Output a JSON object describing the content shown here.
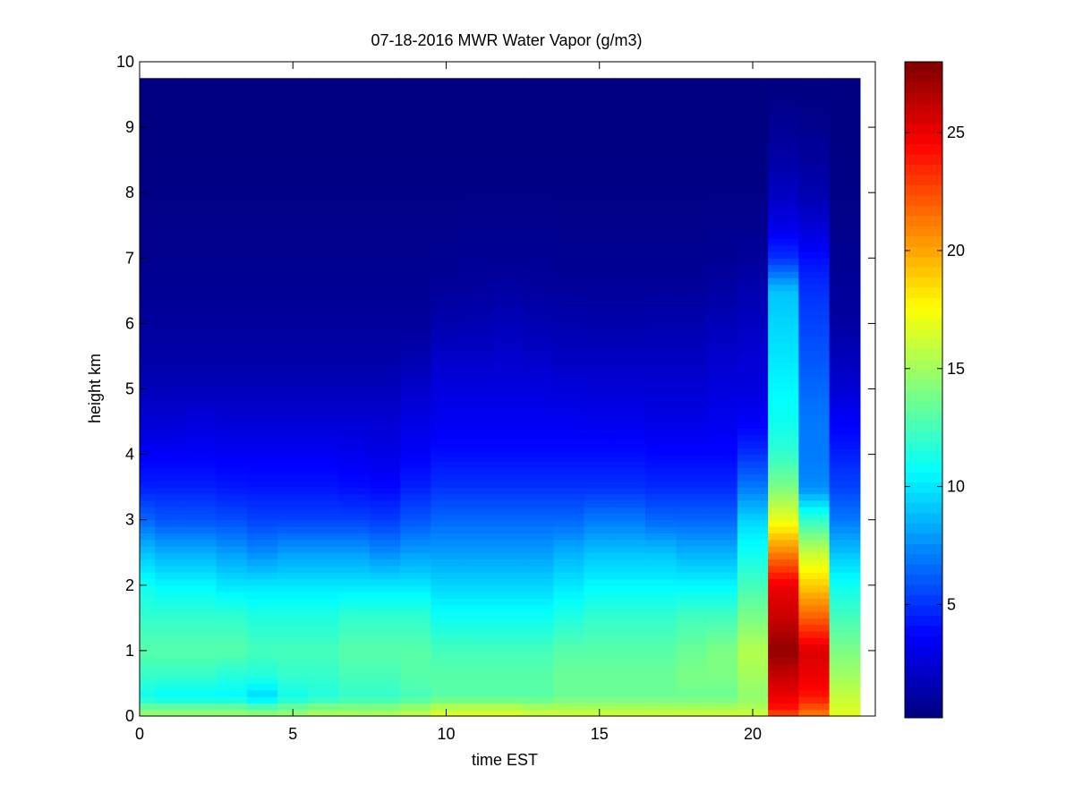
{
  "chart_data": {
    "type": "heatmap",
    "title": "07-18-2016 MWR Water Vapor (g/m3)",
    "xlabel": "time EST",
    "ylabel": "height km",
    "xlim": [
      0,
      24
    ],
    "ylim": [
      0,
      10
    ],
    "x_ticks": [
      0,
      5,
      10,
      15,
      20
    ],
    "y_ticks": [
      0,
      1,
      2,
      3,
      4,
      5,
      6,
      7,
      8,
      9,
      10
    ],
    "colorbar": {
      "colormap": "jet",
      "range": [
        0.2,
        28
      ],
      "ticks": [
        5,
        10,
        15,
        20,
        25
      ]
    },
    "grid": false,
    "time_columns": [
      {
        "start": 0.0,
        "end": 0.5
      },
      {
        "start": 0.5,
        "end": 1.5
      },
      {
        "start": 1.5,
        "end": 2.5
      },
      {
        "start": 2.5,
        "end": 3.5
      },
      {
        "start": 3.5,
        "end": 4.5
      },
      {
        "start": 4.5,
        "end": 5.5
      },
      {
        "start": 5.5,
        "end": 6.5
      },
      {
        "start": 6.5,
        "end": 7.5
      },
      {
        "start": 7.5,
        "end": 8.5
      },
      {
        "start": 8.5,
        "end": 9.5
      },
      {
        "start": 9.5,
        "end": 10.5
      },
      {
        "start": 10.5,
        "end": 11.5
      },
      {
        "start": 11.5,
        "end": 12.5
      },
      {
        "start": 12.5,
        "end": 13.5
      },
      {
        "start": 13.5,
        "end": 14.5
      },
      {
        "start": 14.5,
        "end": 15.5
      },
      {
        "start": 15.5,
        "end": 16.5
      },
      {
        "start": 16.5,
        "end": 17.5
      },
      {
        "start": 17.5,
        "end": 18.5
      },
      {
        "start": 18.5,
        "end": 19.5
      },
      {
        "start": 19.5,
        "end": 20.5
      },
      {
        "start": 20.5,
        "end": 21.5
      },
      {
        "start": 21.5,
        "end": 22.5
      },
      {
        "start": 22.5,
        "end": 23.5
      }
    ],
    "height_profile_km": [
      0,
      0.1,
      0.3,
      0.6,
      1.0,
      1.5,
      2.0,
      2.5,
      3.0,
      3.5,
      4.0,
      4.5,
      5.0,
      5.5,
      6.0,
      6.5,
      7.0,
      7.5,
      8.0,
      8.5,
      9.0,
      9.75
    ],
    "profiles": [
      {
        "time": 0,
        "values": [
          15,
          14,
          11,
          12,
          13,
          12,
          11,
          9,
          6.5,
          4.5,
          3.5,
          2.6,
          1.8,
          1.3,
          1.0,
          0.8,
          0.6,
          0.5,
          0.4,
          0.3,
          0.3,
          0.2
        ]
      },
      {
        "time": 1,
        "values": [
          15,
          14,
          10.5,
          12,
          13,
          12,
          10.5,
          8.5,
          6,
          4.5,
          3.5,
          2.6,
          1.8,
          1.3,
          1.0,
          0.8,
          0.6,
          0.5,
          0.4,
          0.3,
          0.3,
          0.2
        ]
      },
      {
        "time": 2,
        "values": [
          15,
          14,
          10.5,
          12,
          13,
          12,
          10.5,
          8.5,
          6,
          4.5,
          3.5,
          2.8,
          1.8,
          1.3,
          1.0,
          0.8,
          0.6,
          0.5,
          0.4,
          0.3,
          0.3,
          0.2
        ]
      },
      {
        "time": 3,
        "values": [
          15,
          14,
          10.5,
          11.5,
          13,
          12,
          10,
          8,
          5.8,
          4.3,
          3.4,
          2.6,
          1.8,
          1.3,
          1.0,
          0.8,
          0.6,
          0.5,
          0.4,
          0.3,
          0.3,
          0.2
        ]
      },
      {
        "time": 4,
        "values": [
          15,
          13.5,
          9.5,
          11.5,
          12.5,
          11.5,
          10,
          7.5,
          5.5,
          4.2,
          3.4,
          2.6,
          1.8,
          1.3,
          1.0,
          0.8,
          0.6,
          0.5,
          0.4,
          0.3,
          0.3,
          0.2
        ]
      },
      {
        "time": 5,
        "values": [
          15,
          14,
          11,
          12,
          12.5,
          11.5,
          10,
          8,
          5.5,
          4.2,
          3.4,
          2.6,
          1.8,
          1.3,
          1.0,
          0.8,
          0.6,
          0.5,
          0.4,
          0.3,
          0.3,
          0.2
        ]
      },
      {
        "time": 6,
        "values": [
          15.5,
          14.5,
          11.5,
          12,
          12.5,
          11.5,
          10,
          8,
          5.5,
          4.2,
          3.4,
          2.6,
          1.8,
          1.3,
          1.0,
          0.8,
          0.6,
          0.5,
          0.4,
          0.3,
          0.3,
          0.2
        ]
      },
      {
        "time": 7,
        "values": [
          15.5,
          14.5,
          12,
          12.5,
          13,
          12,
          10,
          8,
          5.5,
          4.0,
          3.2,
          2.6,
          1.8,
          1.3,
          1.0,
          0.8,
          0.6,
          0.5,
          0.4,
          0.3,
          0.3,
          0.2
        ]
      },
      {
        "time": 8,
        "values": [
          15.5,
          14.5,
          12,
          12.5,
          13,
          12,
          10,
          7.5,
          5.3,
          3.8,
          3.0,
          2.5,
          1.8,
          1.3,
          1.0,
          0.8,
          0.6,
          0.5,
          0.4,
          0.3,
          0.3,
          0.2
        ]
      },
      {
        "time": 9,
        "values": [
          16,
          15,
          12.5,
          13,
          13,
          12,
          10,
          8,
          6,
          4.5,
          3.5,
          3.0,
          2.3,
          1.5,
          1.0,
          0.8,
          0.6,
          0.5,
          0.4,
          0.3,
          0.3,
          0.2
        ]
      },
      {
        "time": 10,
        "values": [
          17,
          16,
          13,
          13,
          12.5,
          11,
          9.5,
          8,
          6.5,
          5,
          4,
          3.3,
          2.8,
          2.2,
          1.5,
          1.0,
          0.7,
          0.5,
          0.4,
          0.3,
          0.3,
          0.2
        ]
      },
      {
        "time": 11,
        "values": [
          17,
          16,
          13,
          13,
          12.5,
          11,
          9.5,
          8,
          6.5,
          5,
          4,
          3.3,
          2.8,
          2.2,
          1.6,
          1.1,
          0.8,
          0.6,
          0.4,
          0.3,
          0.3,
          0.2
        ]
      },
      {
        "time": 12,
        "values": [
          17,
          16,
          13,
          13,
          12.5,
          11,
          9.5,
          8,
          6.5,
          5,
          4,
          3.3,
          2.8,
          2.3,
          1.8,
          1.2,
          0.8,
          0.6,
          0.4,
          0.3,
          0.3,
          0.2
        ]
      },
      {
        "time": 13,
        "values": [
          16.5,
          15.5,
          13,
          13,
          12.5,
          11,
          9.5,
          8,
          6.5,
          5,
          4,
          3.3,
          2.8,
          2.2,
          1.6,
          1.1,
          0.8,
          0.6,
          0.4,
          0.3,
          0.3,
          0.2
        ]
      },
      {
        "time": 14,
        "values": [
          16.5,
          15.5,
          13.5,
          13.5,
          13,
          11.5,
          10,
          8.5,
          6.5,
          5,
          4,
          3.3,
          2.7,
          2.0,
          1.5,
          1.0,
          0.7,
          0.5,
          0.4,
          0.3,
          0.3,
          0.2
        ]
      },
      {
        "time": 15,
        "values": [
          16.5,
          15.5,
          13.5,
          13.5,
          13,
          12,
          10.5,
          9,
          7,
          5,
          4,
          3.2,
          2.6,
          2.0,
          1.4,
          1.0,
          0.7,
          0.5,
          0.4,
          0.3,
          0.3,
          0.2
        ]
      },
      {
        "time": 16,
        "values": [
          16.5,
          15.5,
          13.5,
          13.5,
          13,
          12,
          10.5,
          9,
          7,
          5,
          4,
          3.2,
          2.6,
          2.0,
          1.4,
          1.0,
          0.7,
          0.5,
          0.4,
          0.3,
          0.3,
          0.2
        ]
      },
      {
        "time": 17,
        "values": [
          16.5,
          15.5,
          13.5,
          13.5,
          13,
          12,
          10.5,
          9,
          6.5,
          4.8,
          3.8,
          3.0,
          2.5,
          2.0,
          1.5,
          1.0,
          0.7,
          0.5,
          0.4,
          0.3,
          0.3,
          0.2
        ]
      },
      {
        "time": 18,
        "values": [
          16.5,
          15.5,
          13.5,
          14,
          13.5,
          12.5,
          10.5,
          8.5,
          6.5,
          4.8,
          3.8,
          3.0,
          2.5,
          2.0,
          1.5,
          1.0,
          0.7,
          0.5,
          0.4,
          0.3,
          0.3,
          0.2
        ]
      },
      {
        "time": 19,
        "values": [
          16.5,
          15.5,
          13.5,
          14,
          14,
          12.5,
          10.5,
          8.5,
          6.5,
          4.8,
          3.8,
          3.2,
          2.8,
          2.3,
          1.8,
          1.2,
          0.8,
          0.6,
          0.4,
          0.3,
          0.3,
          0.2
        ]
      },
      {
        "time": 20,
        "values": [
          16.5,
          15.5,
          14.5,
          15,
          15.5,
          14,
          12.5,
          11,
          9.5,
          7,
          5,
          3.5,
          2.8,
          2.5,
          2.0,
          1.5,
          1.0,
          0.6,
          0.4,
          0.3,
          0.3,
          0.2
        ]
      },
      {
        "time": 21,
        "values": [
          22,
          24,
          25,
          26,
          27.5,
          26,
          25,
          21,
          17,
          14,
          12,
          11,
          10.5,
          10,
          9.5,
          9,
          5,
          3,
          2,
          1.3,
          0.8,
          0.2
        ]
      },
      {
        "time": 22,
        "values": [
          21,
          22,
          24,
          25,
          25.5,
          22,
          19,
          16,
          12,
          7.5,
          7,
          7,
          6.5,
          6,
          5.5,
          5,
          4,
          2.5,
          1.5,
          1.0,
          0.6,
          0.2
        ]
      },
      {
        "time": 23,
        "values": [
          17,
          16.5,
          16,
          15,
          14,
          12.5,
          11,
          9,
          7,
          5.5,
          4.5,
          3.5,
          2.5,
          1.8,
          1.2,
          0.9,
          0.7,
          0.5,
          0.4,
          0.3,
          0.3,
          0.2
        ]
      }
    ]
  }
}
